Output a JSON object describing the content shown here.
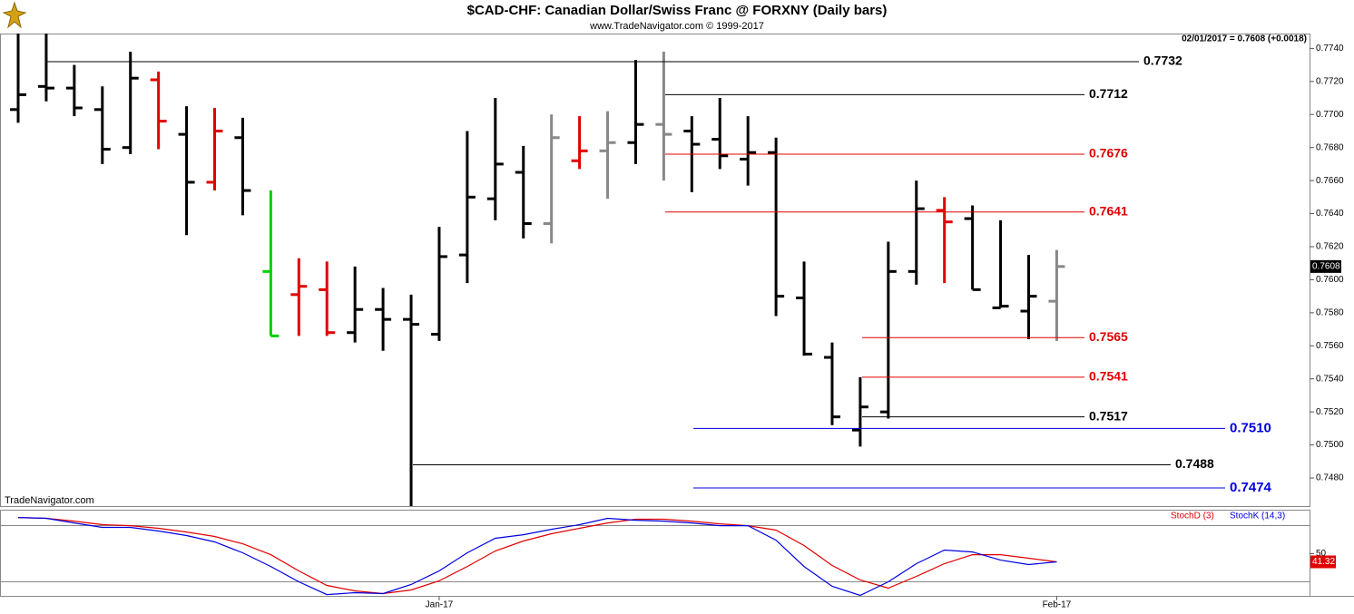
{
  "chart_data": [
    {
      "type": "ohlc",
      "title": "$CAD-CHF:  Canadian Dollar/Swiss Franc @ FORXNY  (Daily bars)",
      "subtitle": "www.TradeNavigator.com © 1999-2017",
      "watermark": "TradeNavigator.com",
      "annotation": "02/01/2017 = 0.7608 (+0.0018)",
      "last_value": 0.7608,
      "categories": [
        null,
        null,
        null,
        null,
        null,
        null,
        null,
        null,
        null,
        null,
        null,
        null,
        null,
        null,
        null,
        "Jan-17",
        null,
        null,
        null,
        null,
        null,
        null,
        null,
        null,
        null,
        null,
        null,
        null,
        null,
        null,
        null,
        null,
        null,
        null,
        null,
        null,
        null,
        "Feb-17"
      ],
      "open": [
        0.7703,
        0.7717,
        0.7716,
        0.7703,
        0.768,
        0.7721,
        0.7688,
        0.7659,
        0.7686,
        0.7605,
        0.7591,
        0.7594,
        0.7568,
        0.7582,
        0.7576,
        0.7567,
        0.7615,
        0.7649,
        0.7665,
        0.7634,
        0.7672,
        0.7678,
        0.7683,
        0.7694,
        0.769,
        0.7685,
        0.7673,
        0.7677,
        0.7589,
        0.7553,
        0.7509,
        0.752,
        0.7605,
        0.7642,
        0.7637,
        0.7583,
        0.7581,
        0.7587
      ],
      "high": [
        0.7755,
        0.7752,
        0.773,
        0.7717,
        0.7738,
        0.7726,
        0.7705,
        0.7704,
        0.7698,
        0.7654,
        0.7613,
        0.7611,
        0.7608,
        0.7595,
        0.7591,
        0.7632,
        0.769,
        0.771,
        0.7681,
        0.77,
        0.7699,
        0.7702,
        0.7733,
        0.7738,
        0.7699,
        0.771,
        0.7699,
        0.7686,
        0.7611,
        0.7562,
        0.7541,
        0.7623,
        0.766,
        0.765,
        0.7645,
        0.7636,
        0.7615,
        0.7618
      ],
      "low": [
        0.7695,
        0.7708,
        0.7699,
        0.767,
        0.7676,
        0.7679,
        0.7627,
        0.7654,
        0.7639,
        0.7566,
        0.7566,
        0.7566,
        0.7562,
        0.7557,
        0.7455,
        0.7563,
        0.7598,
        0.7636,
        0.7625,
        0.7622,
        0.7667,
        0.7649,
        0.767,
        0.766,
        0.7653,
        0.7667,
        0.7657,
        0.7578,
        0.7554,
        0.7512,
        0.7499,
        0.7516,
        0.7597,
        0.7598,
        0.7594,
        0.7583,
        0.7564,
        0.7563
      ],
      "close": [
        0.7712,
        0.7716,
        0.7704,
        0.7679,
        0.7722,
        0.7696,
        0.7659,
        0.769,
        0.7654,
        0.7566,
        0.7596,
        0.7568,
        0.7582,
        0.7576,
        0.7573,
        0.7614,
        0.765,
        0.767,
        0.7634,
        0.7686,
        0.7678,
        0.7683,
        0.7694,
        0.7688,
        0.7682,
        0.7675,
        0.7677,
        0.759,
        0.7555,
        0.7517,
        0.7523,
        0.7605,
        0.7643,
        0.7635,
        0.7594,
        0.7584,
        0.759,
        0.7608
      ],
      "colors": [
        "#000000",
        "#000000",
        "#000000",
        "#000000",
        "#000000",
        "#e00000",
        "#000000",
        "#e00000",
        "#000000",
        "#00d000",
        "#e00000",
        "#e00000",
        "#000000",
        "#000000",
        "#000000",
        "#000000",
        "#000000",
        "#000000",
        "#000000",
        "#888888",
        "#e00000",
        "#888888",
        "#000000",
        "#888888",
        "#000000",
        "#000000",
        "#000000",
        "#000000",
        "#000000",
        "#000000",
        "#000000",
        "#000000",
        "#000000",
        "#e00000",
        "#000000",
        "#000000",
        "#000000",
        "#888888"
      ],
      "ylim": [
        0.7463,
        0.7749
      ],
      "yticks": [
        {
          "value": 0.748,
          "label": "0.7480"
        },
        {
          "value": 0.75,
          "label": "0.7500"
        },
        {
          "value": 0.752,
          "label": "0.7520"
        },
        {
          "value": 0.754,
          "label": "0.7540"
        },
        {
          "value": 0.756,
          "label": "0.7560"
        },
        {
          "value": 0.758,
          "label": "0.7580"
        },
        {
          "value": 0.76,
          "label": "0.7600"
        },
        {
          "value": 0.762,
          "label": "0.7620"
        },
        {
          "value": 0.764,
          "label": "0.7640"
        },
        {
          "value": 0.766,
          "label": "0.7660"
        },
        {
          "value": 0.768,
          "label": "0.7680"
        },
        {
          "value": 0.77,
          "label": "0.7700"
        },
        {
          "value": 0.772,
          "label": "0.7720"
        },
        {
          "value": 0.774,
          "label": "0.7740"
        }
      ],
      "levels": [
        {
          "value": 0.7732,
          "color": "#000000"
        },
        {
          "value": 0.7712,
          "color": "#000000"
        },
        {
          "value": 0.7676,
          "color": "#e00000"
        },
        {
          "value": 0.7641,
          "color": "#e00000"
        },
        {
          "value": 0.7565,
          "color": "#e00000"
        },
        {
          "value": 0.7541,
          "color": "#e00000"
        },
        {
          "value": 0.7517,
          "color": "#000000"
        },
        {
          "value": 0.751,
          "label": "0.7510",
          "color": "#0000e0"
        },
        {
          "value": 0.7488,
          "color": "#000000"
        },
        {
          "value": 0.7474,
          "color": "#0000e0"
        }
      ]
    },
    {
      "type": "line",
      "series": [
        {
          "name": "StochD (3)",
          "color": "#e00000",
          "values": [
            88.7,
            87.8,
            84.8,
            81.0,
            80.0,
            77.1,
            73.2,
            68.4,
            60.6,
            49.0,
            31.6,
            16.1,
            10.3,
            7.4,
            11.3,
            21.0,
            36.4,
            52.9,
            63.6,
            71.3,
            77.1,
            82.9,
            86.8,
            86.8,
            84.8,
            81.9,
            80.0,
            75.2,
            58.7,
            37.4,
            21.9,
            13.2,
            25.8,
            39.4,
            49.0,
            49.0,
            45.2,
            41.3
          ]
        },
        {
          "name": "StochK (14,3)",
          "color": "#0000e0",
          "values": [
            88.7,
            87.8,
            82.9,
            78.1,
            78.1,
            74.2,
            69.4,
            62.6,
            51.0,
            36.4,
            20.0,
            6.4,
            8.4,
            7.4,
            17.1,
            31.6,
            51.0,
            66.5,
            70.3,
            76.1,
            81.0,
            87.8,
            85.8,
            84.8,
            82.9,
            80.0,
            80.0,
            64.5,
            36.4,
            15.2,
            5.5,
            20.0,
            39.4,
            53.9,
            51.9,
            43.2,
            38.4,
            41.3
          ]
        }
      ],
      "ylim": [
        5,
        97
      ],
      "yticks": [
        50
      ],
      "reference_lines": [
        20,
        80
      ],
      "last_value": 41.32
    }
  ]
}
